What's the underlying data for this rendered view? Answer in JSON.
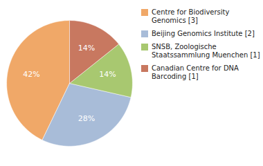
{
  "chart_data": {
    "type": "pie",
    "categories": [
      "Centre for Biodiversity\nGenomics [3]",
      "Beijing Genomics Institute [2]",
      "SNSB, Zoologische\nStaatssammlung Muenchen [1]",
      "Canadian Centre for DNA\nBarcoding [1]"
    ],
    "values": [
      42,
      28,
      14,
      14
    ],
    "value_labels": [
      "42%",
      "28%",
      "14%",
      "14%"
    ],
    "colors": [
      "#f0a868",
      "#a8bcd8",
      "#a8c870",
      "#c87860"
    ],
    "data_labels": true,
    "legend": "right"
  }
}
